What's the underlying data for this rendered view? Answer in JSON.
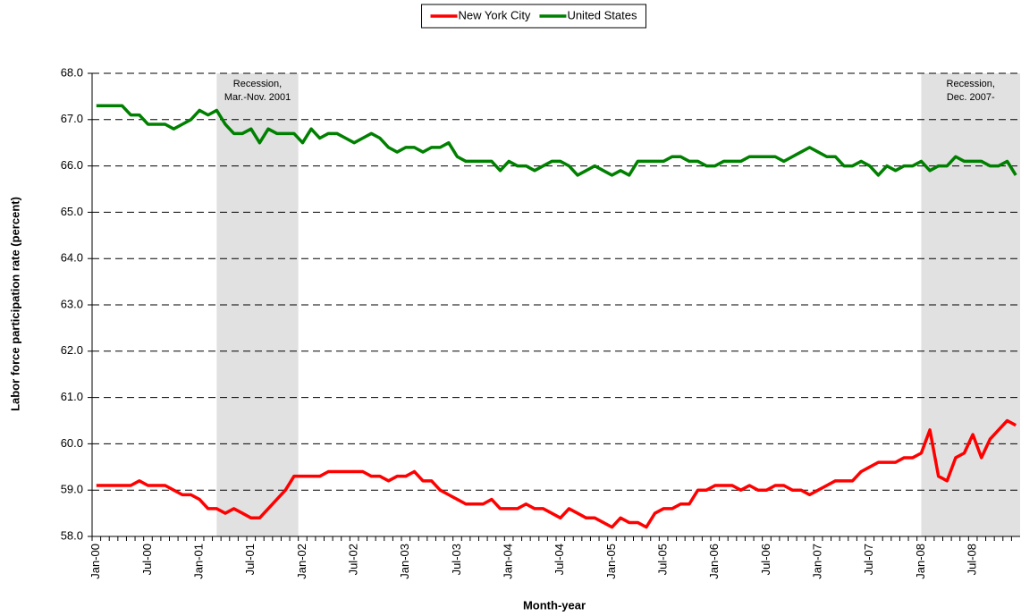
{
  "chart_data": {
    "type": "line",
    "x_label": "Month-year",
    "y_label": "Labor force participation rate (percent)",
    "categories": [
      "Jan-00",
      null,
      null,
      null,
      null,
      null,
      "Jul-00",
      null,
      null,
      null,
      null,
      null,
      "Jan-01",
      null,
      null,
      null,
      null,
      null,
      "Jul-01",
      null,
      null,
      null,
      null,
      null,
      "Jan-02",
      null,
      null,
      null,
      null,
      null,
      "Jul-02",
      null,
      null,
      null,
      null,
      null,
      "Jan-03",
      null,
      null,
      null,
      null,
      null,
      "Jul-03",
      null,
      null,
      null,
      null,
      null,
      "Jan-04",
      null,
      null,
      null,
      null,
      null,
      "Jul-04",
      null,
      null,
      null,
      null,
      null,
      "Jan-05",
      null,
      null,
      null,
      null,
      null,
      "Jul-05",
      null,
      null,
      null,
      null,
      null,
      "Jan-06",
      null,
      null,
      null,
      null,
      null,
      "Jul-06",
      null,
      null,
      null,
      null,
      null,
      "Jan-07",
      null,
      null,
      null,
      null,
      null,
      "Jul-07",
      null,
      null,
      null,
      null,
      null,
      "Jan-08",
      null,
      null,
      null,
      null,
      null,
      "Jul-08",
      null,
      null,
      null,
      null,
      null
    ],
    "series": [
      {
        "name": "New York City",
        "color": "#ff0000",
        "values": [
          59.1,
          59.1,
          59.1,
          59.1,
          59.1,
          59.2,
          59.1,
          59.1,
          59.1,
          59.0,
          58.9,
          58.9,
          58.8,
          58.6,
          58.6,
          58.5,
          58.6,
          58.5,
          58.4,
          58.4,
          58.6,
          58.8,
          59.0,
          59.3,
          59.3,
          59.3,
          59.3,
          59.4,
          59.4,
          59.4,
          59.4,
          59.4,
          59.3,
          59.3,
          59.2,
          59.3,
          59.3,
          59.4,
          59.2,
          59.2,
          59.0,
          58.9,
          58.8,
          58.7,
          58.7,
          58.7,
          58.8,
          58.6,
          58.6,
          58.6,
          58.7,
          58.6,
          58.6,
          58.5,
          58.4,
          58.6,
          58.5,
          58.4,
          58.4,
          58.3,
          58.2,
          58.4,
          58.3,
          58.3,
          58.2,
          58.5,
          58.6,
          58.6,
          58.7,
          58.7,
          59.0,
          59.0,
          59.1,
          59.1,
          59.1,
          59.0,
          59.1,
          59.0,
          59.0,
          59.1,
          59.1,
          59.0,
          59.0,
          58.9,
          59.0,
          59.1,
          59.2,
          59.2,
          59.2,
          59.4,
          59.5,
          59.6,
          59.6,
          59.6,
          59.7,
          59.7,
          59.8,
          60.3,
          59.3,
          59.2,
          59.7,
          59.8,
          60.2,
          59.7,
          60.1,
          60.3,
          60.5,
          60.4
        ]
      },
      {
        "name": "United States",
        "color": "#008000",
        "values": [
          67.3,
          67.3,
          67.3,
          67.3,
          67.1,
          67.1,
          66.9,
          66.9,
          66.9,
          66.8,
          66.9,
          67.0,
          67.2,
          67.1,
          67.2,
          66.9,
          66.7,
          66.7,
          66.8,
          66.5,
          66.8,
          66.7,
          66.7,
          66.7,
          66.5,
          66.8,
          66.6,
          66.7,
          66.7,
          66.6,
          66.5,
          66.6,
          66.7,
          66.6,
          66.4,
          66.3,
          66.4,
          66.4,
          66.3,
          66.4,
          66.4,
          66.5,
          66.2,
          66.1,
          66.1,
          66.1,
          66.1,
          65.9,
          66.1,
          66.0,
          66.0,
          65.9,
          66.0,
          66.1,
          66.1,
          66.0,
          65.8,
          65.9,
          66.0,
          65.9,
          65.8,
          65.9,
          65.8,
          66.1,
          66.1,
          66.1,
          66.1,
          66.2,
          66.2,
          66.1,
          66.1,
          66.0,
          66.0,
          66.1,
          66.1,
          66.1,
          66.2,
          66.2,
          66.2,
          66.2,
          66.1,
          66.2,
          66.3,
          66.4,
          66.3,
          66.2,
          66.2,
          66.0,
          66.0,
          66.1,
          66.0,
          65.8,
          66.0,
          65.9,
          66.0,
          66.0,
          66.1,
          65.9,
          66.0,
          66.0,
          66.2,
          66.1,
          66.1,
          66.1,
          66.0,
          66.0,
          66.1,
          65.8
        ]
      }
    ],
    "shading": [
      {
        "label": [
          "Recession,",
          "Mar.-Nov. 2001"
        ],
        "from": 14,
        "to": 23
      },
      {
        "label": [
          "Recession,",
          "Dec. 2007-"
        ],
        "from": 96,
        "to": 107
      }
    ],
    "ylim": [
      58,
      68
    ],
    "yticks": [
      {
        "value": 58,
        "label": "58.0"
      },
      {
        "value": 59,
        "label": "59.0"
      },
      {
        "value": 60,
        "label": "60.0"
      },
      {
        "value": 61,
        "label": "61.0"
      },
      {
        "value": 62,
        "label": "62.0"
      },
      {
        "value": 63,
        "label": "63.0"
      },
      {
        "value": 64,
        "label": "64.0"
      },
      {
        "value": 65,
        "label": "65.0"
      },
      {
        "value": 66,
        "label": "66.0"
      },
      {
        "value": 67,
        "label": "67.0"
      },
      {
        "value": 68,
        "label": "68.0"
      }
    ],
    "grid": true,
    "legend": "top"
  }
}
